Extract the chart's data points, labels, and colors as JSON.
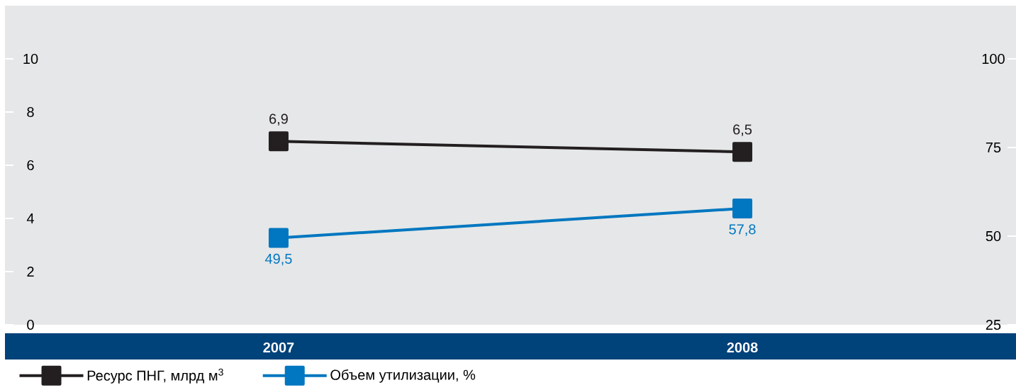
{
  "chart_data": {
    "type": "line",
    "categories": [
      "2007",
      "2008"
    ],
    "ylim": [
      0,
      12
    ],
    "yticks": [
      0,
      2,
      4,
      6,
      8,
      10
    ],
    "y2lim": [
      25,
      115
    ],
    "y2ticks": [
      25,
      50,
      75,
      100
    ],
    "marker": "square",
    "line_style": "solid",
    "legend": "bottom",
    "series": [
      {
        "name": "Ресурс ПНГ, млрд м$^{3}$",
        "color": "#231f20",
        "values": [
          6.9,
          6.5
        ],
        "value_labels": [
          "6,9",
          "6,5"
        ]
      },
      {
        "name": "Объем утилизации, %",
        "color": "#0077c0",
        "values": [
          49.5,
          57.8
        ],
        "value_labels": [
          "49,5",
          "57,8"
        ],
        "axis": "y2"
      }
    ]
  }
}
